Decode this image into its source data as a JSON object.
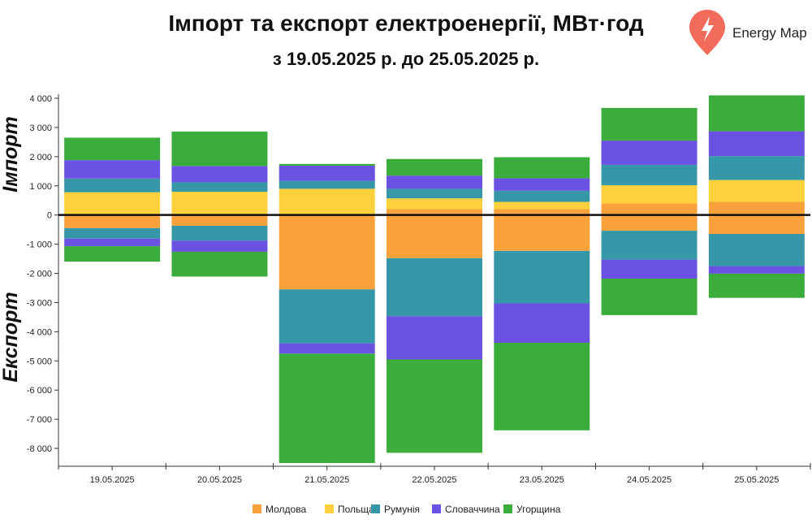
{
  "header": {
    "title": "Імпорт та експорт електроенергії, МВт·год",
    "subtitle": "з 19.05.2025 р. до 25.05.2025 р."
  },
  "brand": {
    "name": "Energy Map",
    "icon": "lightning-pin-icon",
    "color": "#f26b5b"
  },
  "side_labels": {
    "import": "Імпорт",
    "export": "Експорт"
  },
  "chart_data": {
    "type": "bar",
    "stacked": true,
    "categories": [
      "19.05.2025",
      "20.05.2025",
      "21.05.2025",
      "22.05.2025",
      "23.05.2025",
      "24.05.2025",
      "25.05.2025"
    ],
    "ylim": [
      -8500,
      4000
    ],
    "yticks": [
      4000,
      3000,
      2000,
      1000,
      0,
      -1000,
      -2000,
      -3000,
      -4000,
      -5000,
      -6000,
      -7000,
      -8000
    ],
    "ytick_labels": [
      "4 000",
      "3 000",
      "2 000",
      "1 000",
      "0",
      "-1 000",
      "-2 000",
      "-3 000",
      "-4 000",
      "-5 000",
      "-6 000",
      "-7 000",
      "-8 000"
    ],
    "legend_position": "bottom",
    "series": [
      {
        "name": "Молдова",
        "color": "#f9a23c",
        "import": [
          0,
          0,
          0,
          200,
          200,
          400,
          450
        ],
        "export": [
          -450,
          -370,
          -2550,
          -1480,
          -1230,
          -540,
          -650
        ]
      },
      {
        "name": "Польща",
        "color": "#fdd13b",
        "import": [
          780,
          800,
          900,
          370,
          250,
          620,
          750
        ],
        "export": [
          0,
          0,
          0,
          0,
          0,
          0,
          0
        ]
      },
      {
        "name": "Румунія",
        "color": "#3597a7",
        "import": [
          470,
          320,
          270,
          330,
          380,
          700,
          820
        ],
        "export": [
          -360,
          -510,
          -1850,
          -1990,
          -1800,
          -990,
          -1100
        ]
      },
      {
        "name": "Словаччина",
        "color": "#6b52e3",
        "import": [
          630,
          560,
          520,
          450,
          430,
          830,
          850
        ],
        "export": [
          -260,
          -380,
          -350,
          -1480,
          -1350,
          -650,
          -260
        ]
      },
      {
        "name": "Угорщина",
        "color": "#3bad3c",
        "import": [
          770,
          1180,
          60,
          570,
          720,
          1120,
          1230
        ],
        "export": [
          -530,
          -850,
          -3800,
          -3200,
          -3000,
          -1250,
          -830
        ]
      }
    ]
  }
}
